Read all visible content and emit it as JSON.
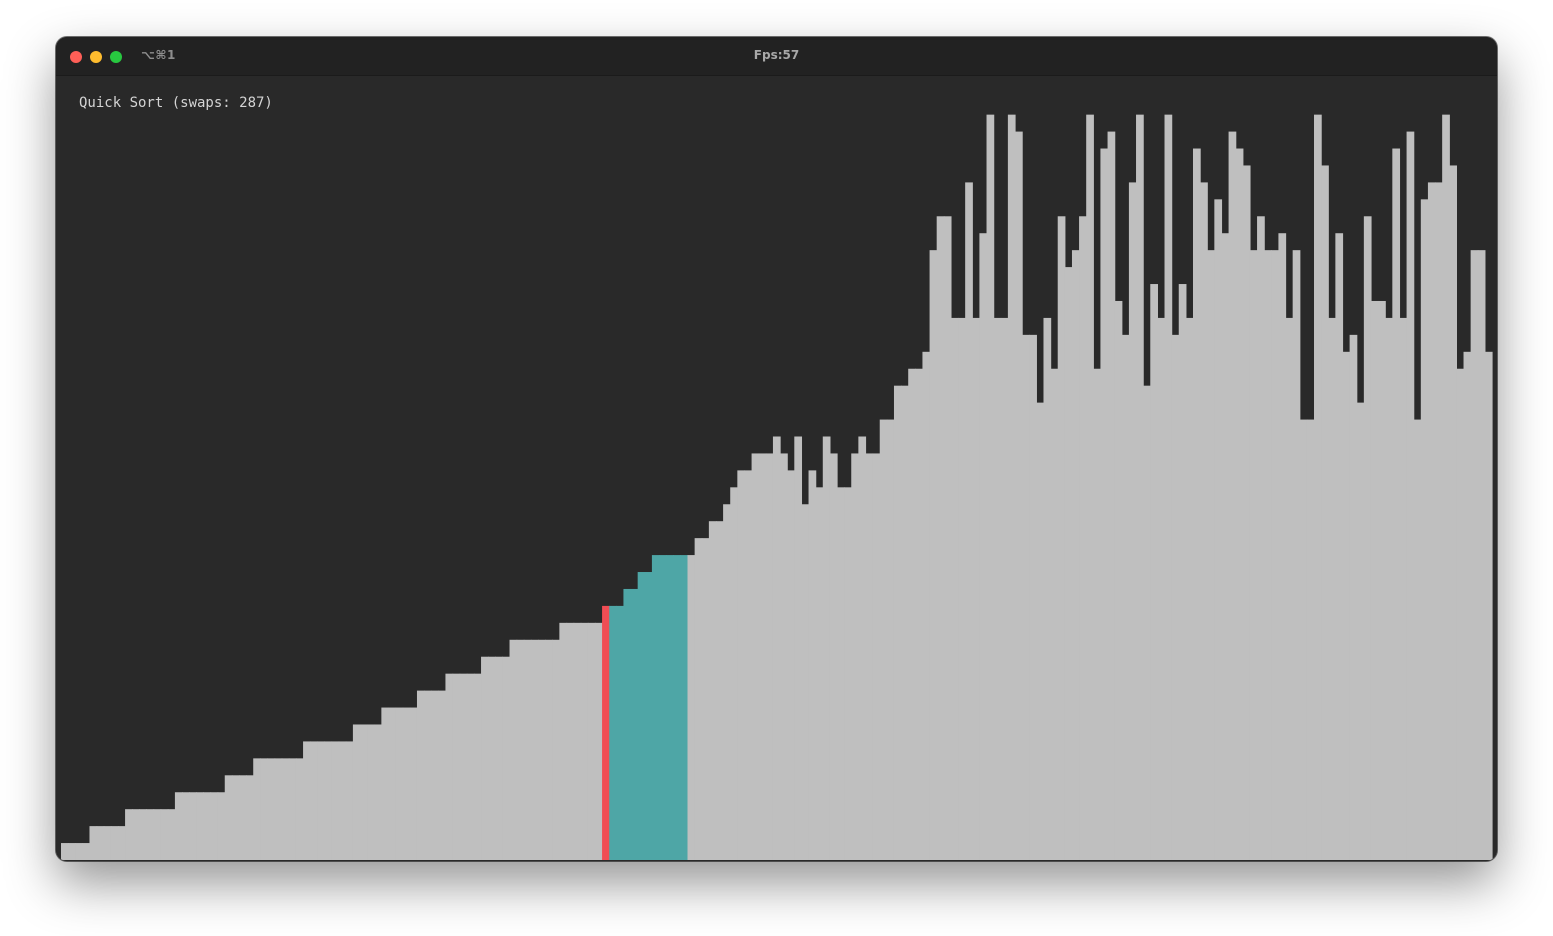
{
  "window": {
    "shortcut": "⌥⌘1",
    "title": "Fps:57"
  },
  "terminal": {
    "status_text": "Quick Sort (swaps: 287)"
  },
  "colors": {
    "background": "#292929",
    "bar_default": "#bfbfbf",
    "bar_pivot": "#f04d54",
    "bar_partition": "#4ea6a6",
    "traffic_close": "#fe5f57",
    "traffic_minimize": "#febc2e",
    "traffic_zoom": "#28c840"
  },
  "chart_data": {
    "type": "bar",
    "values": [
      1,
      1,
      1,
      1,
      2,
      2,
      2,
      2,
      2,
      3,
      3,
      3,
      3,
      3,
      3,
      3,
      4,
      4,
      4,
      4,
      4,
      4,
      4,
      5,
      5,
      5,
      5,
      6,
      6,
      6,
      6,
      6,
      6,
      6,
      7,
      7,
      7,
      7,
      7,
      7,
      7,
      8,
      8,
      8,
      8,
      9,
      9,
      9,
      9,
      9,
      10,
      10,
      10,
      10,
      11,
      11,
      11,
      11,
      11,
      12,
      12,
      12,
      12,
      13,
      13,
      13,
      13,
      13,
      13,
      13,
      14,
      14,
      14,
      14,
      14,
      14,
      15,
      15,
      15,
      16,
      16,
      17,
      17,
      18,
      18,
      18,
      18,
      18,
      18,
      19,
      19,
      20,
      20,
      21,
      22,
      23,
      23,
      24,
      24,
      24,
      25,
      24,
      23,
      25,
      21,
      23,
      22,
      25,
      24,
      22,
      22,
      24,
      25,
      24,
      24,
      26,
      26,
      28,
      28,
      29,
      29,
      30,
      36,
      38,
      38,
      32,
      32,
      40,
      32,
      37,
      44,
      32,
      32,
      44,
      43,
      31,
      31,
      27,
      32,
      29,
      38,
      35,
      36,
      38,
      44,
      29,
      42,
      43,
      33,
      31,
      40,
      44,
      28,
      34,
      32,
      44,
      31,
      34,
      32,
      42,
      40,
      36,
      39,
      37,
      43,
      42,
      41,
      36,
      38,
      36,
      36,
      37,
      32,
      36,
      26,
      26,
      44,
      41,
      32,
      37,
      30,
      31,
      27,
      38,
      33,
      33,
      32,
      42,
      32,
      43,
      26,
      39,
      40,
      40,
      44,
      41,
      29,
      30,
      36,
      36,
      30
    ],
    "pivot_indices": [
      76
    ],
    "partition_range": [
      77,
      87
    ],
    "ylim": [
      0,
      45
    ]
  }
}
